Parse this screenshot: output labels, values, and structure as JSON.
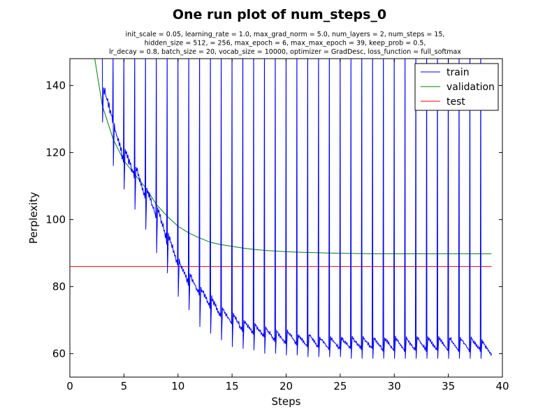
{
  "chart_data": {
    "type": "line",
    "title": "One run plot of num_steps_0",
    "subtitle_lines": [
      "init_scale = 0.05, learning_rate = 1.0, max_grad_norm = 5.0, num_layers = 2, num_steps = 15,",
      "hidden_size = 512,    = 256, max_epoch = 6, max_max_epoch = 39, keep_prob = 0.5,",
      "lr_decay = 0.8, batch_size = 20, vocab_size = 10000, optimizer = GradDesc, loss_function = full_softmax"
    ],
    "xlabel": "Steps",
    "ylabel": "Perplexity",
    "xlim": [
      0,
      40
    ],
    "ylim": [
      53,
      148
    ],
    "xticks": [
      0,
      5,
      10,
      15,
      20,
      25,
      30,
      35,
      40
    ],
    "yticks": [
      60,
      80,
      100,
      120,
      140
    ],
    "grid": false,
    "legend_position": "top-right",
    "series": [
      {
        "name": "train",
        "color": "#0000ff",
        "epoch_baselines": [
          {
            "epoch": 3,
            "start": 140,
            "end": 130
          },
          {
            "epoch": 4,
            "start": 128,
            "end": 118
          },
          {
            "epoch": 5,
            "start": 121,
            "end": 113
          },
          {
            "epoch": 6,
            "start": 116,
            "end": 107
          },
          {
            "epoch": 7,
            "start": 110,
            "end": 101
          },
          {
            "epoch": 8,
            "start": 104,
            "end": 94
          },
          {
            "epoch": 9,
            "start": 96,
            "end": 87
          },
          {
            "epoch": 10,
            "start": 88,
            "end": 81
          },
          {
            "epoch": 11,
            "start": 84,
            "end": 78
          },
          {
            "epoch": 12,
            "start": 80,
            "end": 74
          },
          {
            "epoch": 13,
            "start": 77,
            "end": 71
          },
          {
            "epoch": 14,
            "start": 74,
            "end": 69
          },
          {
            "epoch": 15,
            "start": 72,
            "end": 67
          },
          {
            "epoch": 16,
            "start": 70,
            "end": 66
          },
          {
            "epoch": 17,
            "start": 69,
            "end": 65
          },
          {
            "epoch": 18,
            "start": 68,
            "end": 64
          },
          {
            "epoch": 19,
            "start": 67,
            "end": 63
          },
          {
            "epoch": 20,
            "start": 67,
            "end": 63
          },
          {
            "epoch": 21,
            "start": 66,
            "end": 62
          },
          {
            "epoch": 22,
            "start": 66,
            "end": 62
          },
          {
            "epoch": 23,
            "start": 65,
            "end": 61.5
          },
          {
            "epoch": 24,
            "start": 65,
            "end": 61.5
          },
          {
            "epoch": 25,
            "start": 65,
            "end": 61.5
          },
          {
            "epoch": 26,
            "start": 65,
            "end": 61.5
          },
          {
            "epoch": 27,
            "start": 65,
            "end": 61.5
          },
          {
            "epoch": 28,
            "start": 65,
            "end": 61
          },
          {
            "epoch": 29,
            "start": 65,
            "end": 61
          },
          {
            "epoch": 30,
            "start": 65,
            "end": 61
          },
          {
            "epoch": 31,
            "start": 65,
            "end": 61
          },
          {
            "epoch": 32,
            "start": 65,
            "end": 61
          },
          {
            "epoch": 33,
            "start": 65,
            "end": 61
          },
          {
            "epoch": 34,
            "start": 65,
            "end": 61
          },
          {
            "epoch": 35,
            "start": 65,
            "end": 61
          },
          {
            "epoch": 36,
            "start": 65,
            "end": 61
          },
          {
            "epoch": 37,
            "start": 65,
            "end": 61
          },
          {
            "epoch": 38,
            "start": 64,
            "end": 60
          }
        ],
        "epoch_end_drops": [
          129,
          116,
          109,
          103,
          97,
          90,
          84,
          77,
          73,
          68,
          66,
          64,
          62,
          61.5,
          61,
          60,
          60,
          59.5,
          59.5,
          59,
          59,
          59,
          59,
          58.5,
          58.5,
          58.5,
          58.5,
          58.5,
          58.5,
          58.5,
          58.5,
          58.5,
          58.5,
          58.5,
          58.5,
          58.5
        ],
        "spike_top": 148,
        "final": {
          "x": 39,
          "y": 60
        }
      },
      {
        "name": "validation",
        "color": "#008000",
        "x": [
          2.3,
          3,
          4,
          5,
          6,
          7,
          8,
          9,
          10,
          11,
          12,
          13,
          14,
          15,
          16,
          17,
          18,
          19,
          20,
          21,
          22,
          23,
          24,
          25,
          26,
          27,
          28,
          29,
          30,
          31,
          32,
          33,
          34,
          35,
          36,
          37,
          38,
          39
        ],
        "y": [
          148,
          134,
          124,
          117.5,
          113.5,
          109.5,
          104.5,
          101,
          98,
          96,
          94.5,
          93.2,
          92.5,
          92,
          91.5,
          91.1,
          90.8,
          90.6,
          90.4,
          90.3,
          90.2,
          90.1,
          90.0,
          89.95,
          89.9,
          89.85,
          89.8,
          89.8,
          89.8,
          89.8,
          89.8,
          89.8,
          89.8,
          89.8,
          89.8,
          89.8,
          89.8,
          89.8
        ]
      },
      {
        "name": "test",
        "color": "#ff0000",
        "x": [
          0,
          39
        ],
        "y": [
          86,
          86
        ]
      }
    ]
  }
}
